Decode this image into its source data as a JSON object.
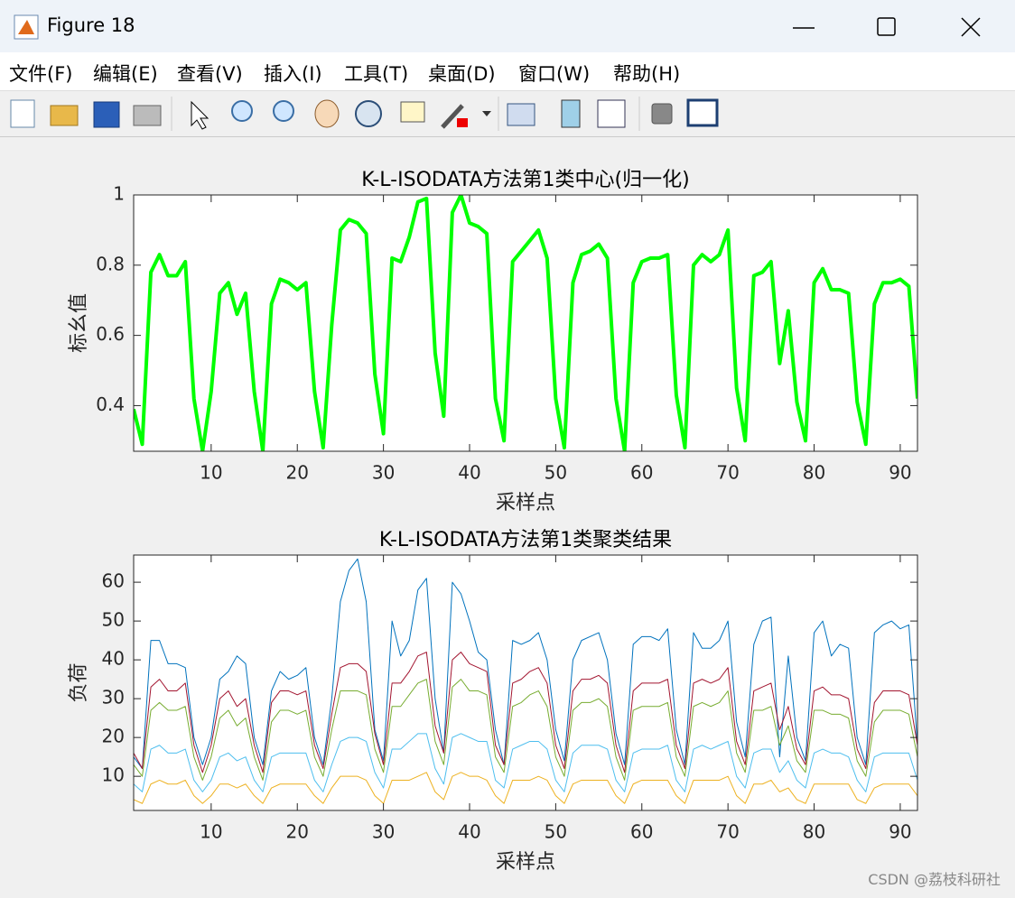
{
  "window": {
    "title": "Figure 18",
    "menu": [
      "文件(F)",
      "编辑(E)",
      "查看(V)",
      "插入(I)",
      "工具(T)",
      "桌面(D)",
      "窗口(W)",
      "帮助(H)"
    ],
    "watermark": "CSDN @荔枝科研社"
  },
  "chart_data": [
    {
      "type": "line",
      "title": "K-L-ISODATA方法第1类中心(归一化)",
      "xlabel": "采样点",
      "ylabel": "标幺值",
      "x": [
        1,
        2,
        3,
        4,
        5,
        6,
        7,
        8,
        9,
        10,
        11,
        12,
        13,
        14,
        15,
        16,
        17,
        18,
        19,
        20,
        21,
        22,
        23,
        24,
        25,
        26,
        27,
        28,
        29,
        30,
        31,
        32,
        33,
        34,
        35,
        36,
        37,
        38,
        39,
        40,
        41,
        42,
        43,
        44,
        45,
        46,
        47,
        48,
        49,
        50,
        51,
        52,
        53,
        54,
        55,
        56,
        57,
        58,
        59,
        60,
        61,
        62,
        63,
        64,
        65,
        66,
        67,
        68,
        69,
        70,
        71,
        72,
        73,
        74,
        75,
        76,
        77,
        78,
        79,
        80,
        81,
        82,
        83,
        84,
        85,
        86,
        87,
        88,
        89,
        90,
        91,
        92
      ],
      "series": [
        {
          "color": "#00ff00",
          "line_width": 4,
          "values": [
            0.39,
            0.29,
            0.78,
            0.83,
            0.77,
            0.77,
            0.81,
            0.42,
            0.27,
            0.44,
            0.72,
            0.75,
            0.66,
            0.72,
            0.44,
            0.27,
            0.69,
            0.76,
            0.75,
            0.73,
            0.75,
            0.44,
            0.28,
            0.63,
            0.9,
            0.93,
            0.92,
            0.89,
            0.49,
            0.32,
            0.82,
            0.81,
            0.88,
            0.98,
            0.99,
            0.55,
            0.37,
            0.95,
            1.0,
            0.92,
            0.91,
            0.89,
            0.42,
            0.3,
            0.81,
            0.84,
            0.87,
            0.9,
            0.82,
            0.42,
            0.28,
            0.75,
            0.83,
            0.84,
            0.86,
            0.82,
            0.42,
            0.27,
            0.75,
            0.81,
            0.82,
            0.82,
            0.83,
            0.43,
            0.28,
            0.8,
            0.83,
            0.81,
            0.83,
            0.9,
            0.45,
            0.3,
            0.77,
            0.78,
            0.81,
            0.52,
            0.67,
            0.41,
            0.3,
            0.75,
            0.79,
            0.73,
            0.73,
            0.72,
            0.41,
            0.29,
            0.69,
            0.75,
            0.75,
            0.76,
            0.74,
            0.42
          ]
        }
      ],
      "xlim": [
        1,
        92
      ],
      "xticks": [
        10,
        20,
        30,
        40,
        50,
        60,
        70,
        80,
        90
      ],
      "ylim": [
        0.27,
        1
      ],
      "yticks": [
        0.4,
        0.6,
        0.8,
        1
      ]
    },
    {
      "type": "line",
      "title": "K-L-ISODATA方法第1类聚类结果",
      "xlabel": "采样点",
      "ylabel": "负荷",
      "x": [
        1,
        2,
        3,
        4,
        5,
        6,
        7,
        8,
        9,
        10,
        11,
        12,
        13,
        14,
        15,
        16,
        17,
        18,
        19,
        20,
        21,
        22,
        23,
        24,
        25,
        26,
        27,
        28,
        29,
        30,
        31,
        32,
        33,
        34,
        35,
        36,
        37,
        38,
        39,
        40,
        41,
        42,
        43,
        44,
        45,
        46,
        47,
        48,
        49,
        50,
        51,
        52,
        53,
        54,
        55,
        56,
        57,
        58,
        59,
        60,
        61,
        62,
        63,
        64,
        65,
        66,
        67,
        68,
        69,
        70,
        71,
        72,
        73,
        74,
        75,
        76,
        77,
        78,
        79,
        80,
        81,
        82,
        83,
        84,
        85,
        86,
        87,
        88,
        89,
        90,
        91,
        92
      ],
      "series": [
        {
          "color": "#0072bd",
          "line_width": 1,
          "values": [
            15,
            12,
            45,
            45,
            39,
            39,
            38,
            20,
            13,
            20,
            35,
            37,
            41,
            39,
            20,
            13,
            32,
            37,
            35,
            36,
            38,
            20,
            13,
            30,
            55,
            63,
            66,
            55,
            22,
            14,
            50,
            41,
            45,
            58,
            61,
            30,
            16,
            60,
            57,
            50,
            42,
            40,
            22,
            13,
            45,
            44,
            45,
            47,
            40,
            22,
            14,
            40,
            45,
            46,
            47,
            40,
            21,
            13,
            44,
            46,
            46,
            45,
            48,
            22,
            13,
            47,
            43,
            43,
            45,
            50,
            24,
            15,
            44,
            50,
            51,
            15,
            41,
            20,
            14,
            47,
            50,
            41,
            44,
            43,
            20,
            13,
            47,
            49,
            50,
            48,
            49,
            18
          ]
        },
        {
          "color": "#a2142f",
          "line_width": 1,
          "values": [
            16,
            12,
            33,
            35,
            32,
            32,
            34,
            18,
            11,
            18,
            30,
            32,
            28,
            30,
            18,
            11,
            29,
            32,
            32,
            31,
            32,
            18,
            12,
            26,
            38,
            39,
            39,
            37,
            21,
            13,
            34,
            34,
            37,
            41,
            42,
            23,
            16,
            40,
            42,
            39,
            38,
            37,
            18,
            13,
            34,
            35,
            37,
            38,
            34,
            18,
            12,
            32,
            35,
            35,
            36,
            34,
            18,
            11,
            32,
            34,
            34,
            34,
            35,
            18,
            12,
            34,
            35,
            34,
            35,
            38,
            19,
            13,
            32,
            33,
            34,
            22,
            28,
            17,
            13,
            32,
            33,
            31,
            31,
            30,
            17,
            12,
            29,
            32,
            32,
            32,
            31,
            18
          ]
        },
        {
          "color": "#77ac30",
          "line_width": 1,
          "values": [
            13,
            10,
            27,
            29,
            27,
            27,
            28,
            15,
            9,
            15,
            25,
            27,
            23,
            25,
            15,
            9,
            24,
            27,
            27,
            26,
            27,
            15,
            10,
            22,
            32,
            32,
            32,
            31,
            17,
            11,
            28,
            28,
            31,
            34,
            35,
            19,
            13,
            33,
            35,
            32,
            32,
            31,
            15,
            11,
            28,
            29,
            31,
            32,
            28,
            15,
            10,
            27,
            29,
            29,
            30,
            28,
            15,
            9,
            27,
            28,
            28,
            28,
            29,
            15,
            10,
            28,
            29,
            28,
            29,
            32,
            16,
            11,
            27,
            27,
            28,
            18,
            23,
            14,
            11,
            27,
            27,
            26,
            26,
            25,
            14,
            10,
            24,
            27,
            27,
            27,
            26,
            15
          ]
        },
        {
          "color": "#4dbeee",
          "line_width": 1,
          "values": [
            8,
            6,
            17,
            18,
            16,
            16,
            17,
            9,
            6,
            9,
            15,
            16,
            14,
            15,
            9,
            6,
            15,
            16,
            16,
            16,
            16,
            9,
            6,
            13,
            19,
            20,
            20,
            19,
            11,
            7,
            17,
            17,
            19,
            21,
            21,
            12,
            8,
            20,
            21,
            20,
            19,
            19,
            9,
            7,
            17,
            18,
            19,
            19,
            17,
            9,
            6,
            16,
            18,
            18,
            18,
            17,
            9,
            6,
            16,
            17,
            17,
            17,
            18,
            9,
            6,
            17,
            18,
            17,
            18,
            19,
            10,
            7,
            16,
            17,
            17,
            11,
            14,
            9,
            7,
            16,
            17,
            16,
            16,
            15,
            9,
            6,
            15,
            16,
            16,
            16,
            16,
            9
          ]
        },
        {
          "color": "#edb120",
          "line_width": 1,
          "values": [
            4,
            3,
            8,
            9,
            8,
            8,
            9,
            5,
            3,
            5,
            8,
            8,
            7,
            8,
            5,
            3,
            7,
            8,
            8,
            8,
            8,
            5,
            3,
            7,
            10,
            10,
            10,
            9,
            5,
            3,
            9,
            9,
            9,
            10,
            11,
            6,
            4,
            10,
            11,
            10,
            10,
            9,
            5,
            3,
            9,
            9,
            9,
            10,
            9,
            5,
            3,
            8,
            9,
            9,
            9,
            9,
            5,
            3,
            8,
            9,
            9,
            9,
            9,
            5,
            3,
            9,
            9,
            9,
            9,
            10,
            5,
            3,
            8,
            8,
            9,
            6,
            7,
            4,
            3,
            8,
            8,
            8,
            8,
            8,
            4,
            3,
            7,
            8,
            8,
            8,
            8,
            5
          ]
        }
      ],
      "xlim": [
        1,
        92
      ],
      "xticks": [
        10,
        20,
        30,
        40,
        50,
        60,
        70,
        80,
        90
      ],
      "ylim": [
        1.2,
        67
      ],
      "yticks": [
        10,
        20,
        30,
        40,
        50,
        60
      ]
    }
  ]
}
